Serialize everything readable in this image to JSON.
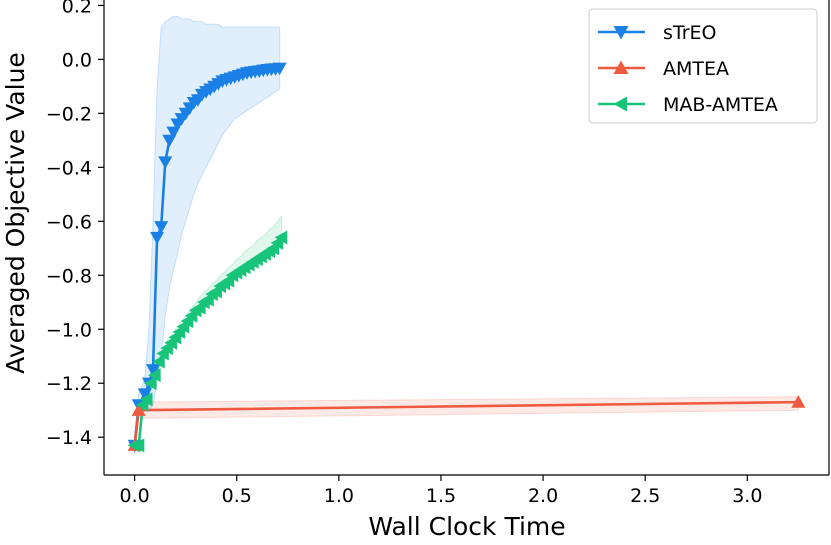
{
  "chart_data": {
    "type": "line",
    "xlabel": "Wall Clock Time",
    "ylabel": "Averaged Objective Value",
    "xlim": [
      -0.15,
      3.4
    ],
    "ylim": [
      -1.54,
      0.22
    ],
    "x_ticks": [
      0.0,
      0.5,
      1.0,
      1.5,
      2.0,
      2.5,
      3.0
    ],
    "x_tick_labels": [
      "0.0",
      "0.5",
      "1.0",
      "1.5",
      "2.0",
      "2.5",
      "3.0"
    ],
    "y_ticks": [
      0.2,
      0.0,
      -0.2,
      -0.4,
      -0.6,
      -0.8,
      -1.0,
      -1.2,
      -1.4
    ],
    "y_tick_labels": [
      "0.2",
      "0.0",
      "−0.2",
      "−0.4",
      "−0.6",
      "−0.8",
      "−1.0",
      "−1.2",
      "−1.4"
    ],
    "grid": false,
    "legend_position": "top-right",
    "series": [
      {
        "name": "sTrEO",
        "color": "#1a80e5",
        "marker": "triangle-down",
        "x": [
          0.0,
          0.02,
          0.05,
          0.07,
          0.09,
          0.11,
          0.13,
          0.15,
          0.17,
          0.19,
          0.21,
          0.23,
          0.25,
          0.27,
          0.29,
          0.31,
          0.33,
          0.35,
          0.37,
          0.39,
          0.41,
          0.43,
          0.45,
          0.47,
          0.49,
          0.51,
          0.53,
          0.55,
          0.57,
          0.59,
          0.61,
          0.63,
          0.65,
          0.67,
          0.69,
          0.71
        ],
        "y": [
          -1.43,
          -1.28,
          -1.24,
          -1.2,
          -1.15,
          -0.66,
          -0.62,
          -0.38,
          -0.3,
          -0.27,
          -0.24,
          -0.22,
          -0.2,
          -0.18,
          -0.16,
          -0.15,
          -0.13,
          -0.12,
          -0.11,
          -0.1,
          -0.09,
          -0.08,
          -0.075,
          -0.07,
          -0.065,
          -0.06,
          -0.055,
          -0.05,
          -0.047,
          -0.045,
          -0.043,
          -0.04,
          -0.038,
          -0.036,
          -0.035,
          -0.033
        ],
        "band_upper": [
          -1.4,
          -1.24,
          -1.18,
          -1.0,
          -0.6,
          -0.1,
          0.12,
          0.14,
          0.15,
          0.16,
          0.16,
          0.15,
          0.15,
          0.15,
          0.14,
          0.14,
          0.14,
          0.13,
          0.13,
          0.13,
          0.13,
          0.12,
          0.12,
          0.12,
          0.12,
          0.12,
          0.12,
          0.12,
          0.12,
          0.12,
          0.12,
          0.12,
          0.12,
          0.12,
          0.12,
          0.12
        ],
        "band_lower": [
          -1.46,
          -1.32,
          -1.3,
          -1.3,
          -1.28,
          -1.2,
          -1.1,
          -0.95,
          -0.85,
          -0.78,
          -0.72,
          -0.65,
          -0.6,
          -0.55,
          -0.5,
          -0.46,
          -0.43,
          -0.4,
          -0.37,
          -0.34,
          -0.31,
          -0.28,
          -0.26,
          -0.24,
          -0.22,
          -0.21,
          -0.2,
          -0.19,
          -0.18,
          -0.17,
          -0.16,
          -0.15,
          -0.14,
          -0.13,
          -0.12,
          -0.11
        ]
      },
      {
        "name": "AMTEA",
        "color": "#ee5a40",
        "marker": "triangle-up",
        "x": [
          0.0,
          0.02,
          3.25
        ],
        "y": [
          -1.43,
          -1.3,
          -1.27
        ],
        "band_upper": [
          -1.4,
          -1.27,
          -1.25
        ],
        "band_lower": [
          -1.46,
          -1.33,
          -1.3
        ]
      },
      {
        "name": "MAB-AMTEA",
        "color": "#17c47a",
        "marker": "triangle-left",
        "x": [
          0.0,
          0.02,
          0.04,
          0.06,
          0.08,
          0.1,
          0.12,
          0.14,
          0.16,
          0.18,
          0.2,
          0.22,
          0.24,
          0.26,
          0.28,
          0.3,
          0.32,
          0.34,
          0.36,
          0.38,
          0.4,
          0.42,
          0.44,
          0.46,
          0.48,
          0.5,
          0.52,
          0.54,
          0.56,
          0.58,
          0.6,
          0.62,
          0.64,
          0.66,
          0.68,
          0.7,
          0.72
        ],
        "y": [
          -1.43,
          -1.43,
          -1.28,
          -1.26,
          -1.2,
          -1.17,
          -1.12,
          -1.09,
          -1.07,
          -1.05,
          -1.03,
          -1.01,
          -0.99,
          -0.97,
          -0.95,
          -0.93,
          -0.92,
          -0.9,
          -0.89,
          -0.87,
          -0.86,
          -0.84,
          -0.83,
          -0.82,
          -0.8,
          -0.79,
          -0.78,
          -0.77,
          -0.76,
          -0.75,
          -0.74,
          -0.73,
          -0.72,
          -0.71,
          -0.7,
          -0.68,
          -0.66
        ],
        "band_upper": [
          -1.41,
          -1.41,
          -1.26,
          -1.24,
          -1.18,
          -1.15,
          -1.1,
          -1.07,
          -1.04,
          -1.02,
          -1.0,
          -0.98,
          -0.96,
          -0.94,
          -0.92,
          -0.9,
          -0.88,
          -0.86,
          -0.85,
          -0.83,
          -0.82,
          -0.8,
          -0.79,
          -0.77,
          -0.76,
          -0.74,
          -0.73,
          -0.71,
          -0.7,
          -0.69,
          -0.67,
          -0.66,
          -0.65,
          -0.63,
          -0.62,
          -0.6,
          -0.58
        ],
        "band_lower": [
          -1.45,
          -1.45,
          -1.3,
          -1.28,
          -1.22,
          -1.19,
          -1.14,
          -1.11,
          -1.09,
          -1.07,
          -1.05,
          -1.03,
          -1.01,
          -0.99,
          -0.97,
          -0.95,
          -0.94,
          -0.92,
          -0.91,
          -0.89,
          -0.88,
          -0.86,
          -0.85,
          -0.84,
          -0.82,
          -0.81,
          -0.8,
          -0.79,
          -0.78,
          -0.77,
          -0.76,
          -0.75,
          -0.74,
          -0.73,
          -0.72,
          -0.71,
          -0.7
        ]
      }
    ]
  }
}
